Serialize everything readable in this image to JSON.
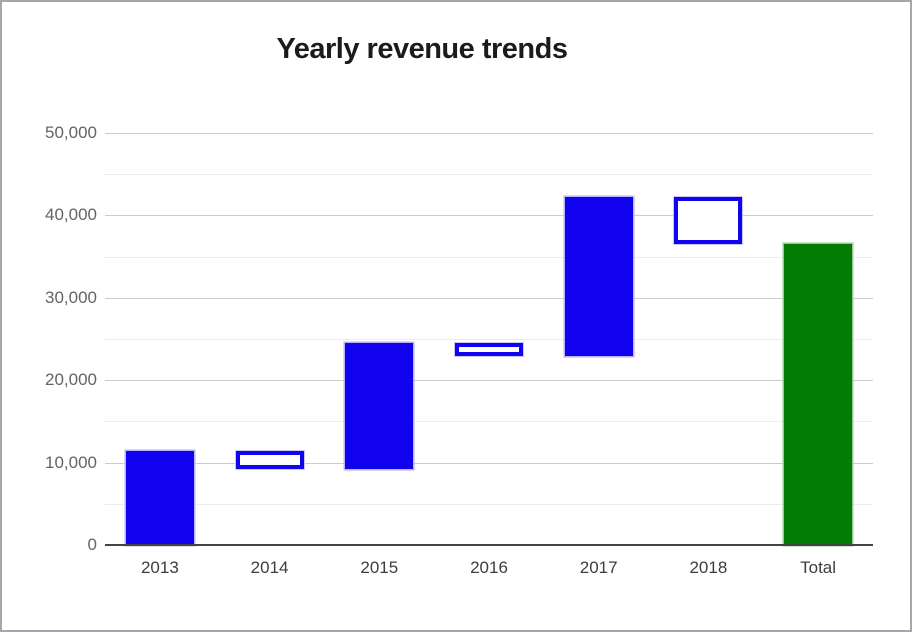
{
  "window": {
    "border_color": "#a6a6ac",
    "background": "#ffffff"
  },
  "chart": {
    "title": "Yearly revenue trends"
  },
  "chart_data": {
    "type": "waterfall",
    "title": "Yearly revenue trends",
    "categories": [
      "2013",
      "2014",
      "2015",
      "2016",
      "2017",
      "2018",
      "Total"
    ],
    "segments": [
      {
        "label": "2013",
        "start": 0,
        "end": 11400,
        "style": "solid-blue",
        "kind": "increase"
      },
      {
        "label": "2014",
        "start": 9250,
        "end": 11400,
        "style": "hollow-blue",
        "kind": "decrease"
      },
      {
        "label": "2015",
        "start": 9250,
        "end": 24500,
        "style": "solid-blue",
        "kind": "increase"
      },
      {
        "label": "2016",
        "start": 22900,
        "end": 24500,
        "style": "hollow-blue",
        "kind": "decrease"
      },
      {
        "label": "2017",
        "start": 22900,
        "end": 42200,
        "style": "solid-blue",
        "kind": "increase"
      },
      {
        "label": "2018",
        "start": 36500,
        "end": 42200,
        "style": "hollow-blue",
        "kind": "decrease"
      },
      {
        "label": "Total",
        "start": 0,
        "end": 36500,
        "style": "solid-green",
        "kind": "total"
      }
    ],
    "y_axis": {
      "min": 0,
      "max": 50000,
      "major_interval": 10000,
      "minor_interval": 5000,
      "tick_labels": [
        "0",
        "10,000",
        "20,000",
        "30,000",
        "40,000",
        "50,000"
      ]
    },
    "x_axis": {
      "tick_labels": [
        "2013",
        "2014",
        "2015",
        "2016",
        "2017",
        "2018",
        "Total"
      ]
    },
    "legend": "none",
    "grid": true,
    "colors": {
      "solid_fill": "#1103f0",
      "solid_edge": "#b5b2f8",
      "hollow_border": "#1103f0",
      "hollow_fill": "#ffffff",
      "total_fill": "#047c04",
      "total_edge": "#9ac89a",
      "grid_major": "#cccccc",
      "grid_minor": "#ececec",
      "zero_baseline": "#424242",
      "y_label_color": "#646464",
      "x_label_color": "#3d3d3d",
      "title_color": "#1b1b1b"
    }
  }
}
